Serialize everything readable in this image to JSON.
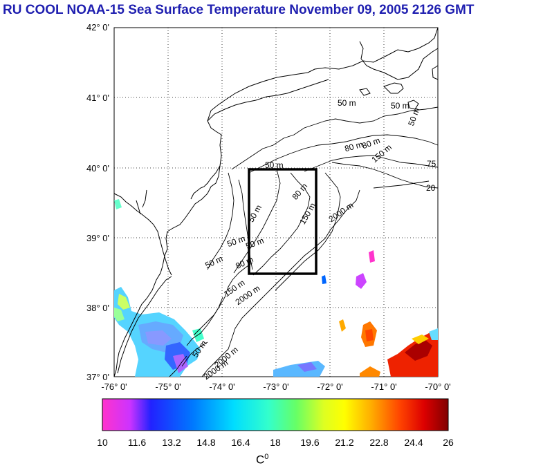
{
  "title": "RU COOL  NOAA-15 Sea Surface Temperature November 09, 2005 2126 GMT",
  "map": {
    "lat_labels": [
      "42° 0'",
      "41° 0'",
      "40° 0'",
      "39° 0'",
      "38° 0'",
      "37° 0'"
    ],
    "lon_labels": [
      "-76° 0'",
      "-75° 0'",
      "-74° 0'",
      "-73° 0'",
      "-72° 0'",
      "-71° 0'",
      "-70° 0'"
    ],
    "lat_range": [
      37,
      42
    ],
    "lon_range": [
      -76,
      -70
    ],
    "study_box": {
      "lon": [
        -73.5,
        -72.3
      ],
      "lat": [
        38.5,
        40.0
      ]
    },
    "isobath_labels": [
      "50 m",
      "50 m",
      "50 m",
      "80 m",
      "80 m",
      "150 m",
      "2000 m",
      "2000 m",
      "2000 m",
      "50 m",
      "50 m",
      "80 m",
      "150 m",
      "50 m",
      "75",
      "20",
      "50 m",
      "80 m",
      "150 m",
      "2000 m",
      "50 m",
      "50 m"
    ]
  },
  "colorbar": {
    "tick_labels": [
      "10",
      "11.6",
      "13.2",
      "14.8",
      "16.4",
      "18",
      "19.6",
      "21.2",
      "22.8",
      "24.4",
      "26"
    ],
    "unit": "C",
    "unit_sup": "0",
    "colors": [
      "#ff33cc",
      "#cc33ff",
      "#1a1aff",
      "#0066ff",
      "#00ccff",
      "#33ffcc",
      "#66ff66",
      "#ccff33",
      "#ffff00",
      "#ffaa00",
      "#ff5500",
      "#dd0000",
      "#880000"
    ]
  }
}
